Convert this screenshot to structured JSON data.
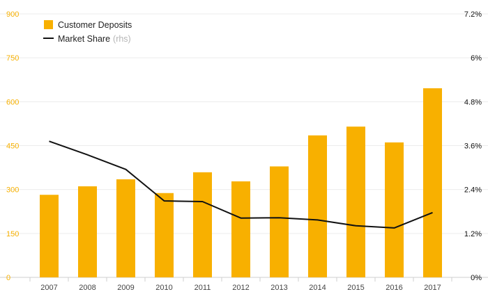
{
  "chart_data": {
    "type": "bar",
    "categories": [
      "2007",
      "2008",
      "2009",
      "2010",
      "2011",
      "2012",
      "2013",
      "2014",
      "2015",
      "2016",
      "2017"
    ],
    "series": [
      {
        "name": "Customer Deposits",
        "type": "bar",
        "axis": "left",
        "color": "#f8b000",
        "values": [
          282,
          311,
          335,
          288,
          359,
          328,
          379,
          485,
          515,
          461,
          646
        ]
      },
      {
        "name": "Market Share",
        "name_suffix": "(rhs)",
        "type": "line",
        "axis": "right",
        "color": "#111111",
        "values": [
          3.72,
          3.35,
          2.95,
          2.09,
          2.07,
          1.62,
          1.63,
          1.57,
          1.41,
          1.35,
          1.77
        ]
      }
    ],
    "y_left": {
      "range": [
        0,
        900
      ],
      "ticks": [
        0,
        150,
        300,
        450,
        600,
        750,
        900
      ],
      "tick_labels": [
        "0",
        "150",
        "300",
        "450",
        "600",
        "750",
        "900"
      ],
      "color": "#f6b000"
    },
    "y_right": {
      "range": [
        0,
        7.2
      ],
      "ticks": [
        0,
        1.2,
        2.4,
        3.6,
        4.8,
        6,
        7.2
      ],
      "tick_labels": [
        "0%",
        "1.2%",
        "2.4%",
        "3.6%",
        "4.8%",
        "6%",
        "7.2%"
      ],
      "color": "#111111"
    },
    "grid": true,
    "legend_position": "top-left"
  }
}
